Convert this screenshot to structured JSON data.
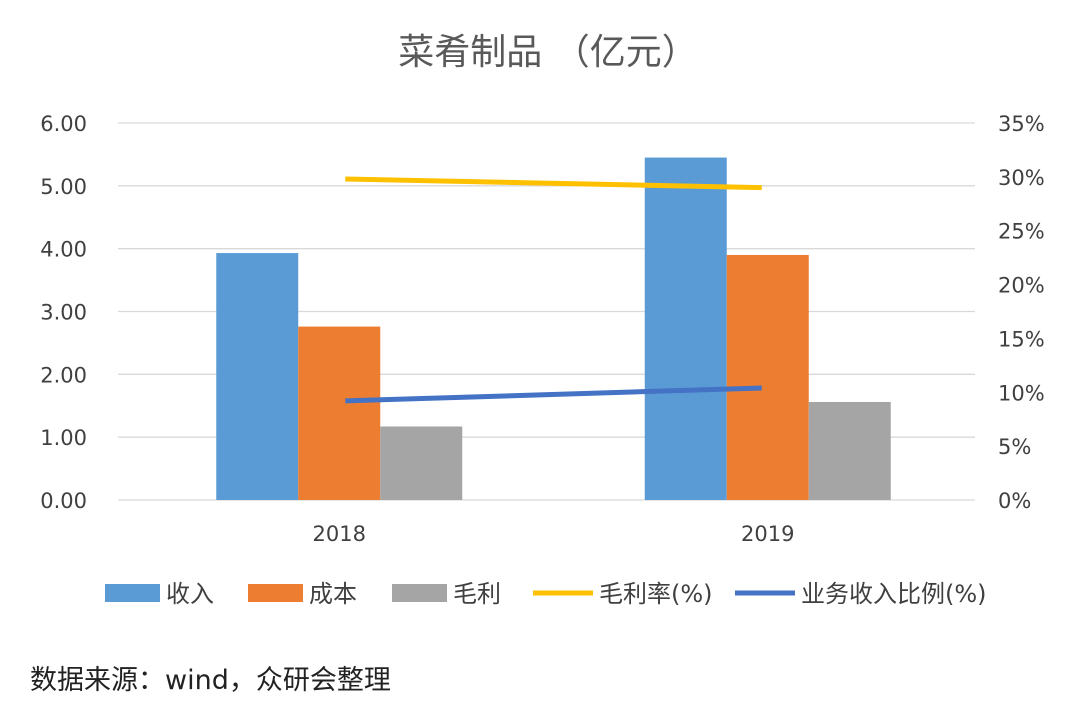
{
  "chart_data": {
    "type": "bar",
    "title": "菜肴制品 （亿元）",
    "categories": [
      "2018",
      "2019"
    ],
    "series": [
      {
        "name": "收入",
        "kind": "bar",
        "axis": "left",
        "color": "#5B9BD5",
        "values": [
          3.93,
          5.45
        ]
      },
      {
        "name": "成本",
        "kind": "bar",
        "axis": "left",
        "color": "#ED7D31",
        "values": [
          2.76,
          3.9
        ]
      },
      {
        "name": "毛利",
        "kind": "bar",
        "axis": "left",
        "color": "#A5A5A5",
        "values": [
          1.17,
          1.56
        ]
      },
      {
        "name": "毛利率(%)",
        "kind": "line",
        "axis": "right",
        "color": "#FFC000",
        "values": [
          29.8,
          29.0
        ]
      },
      {
        "name": "业务收入比例(%)",
        "kind": "line",
        "axis": "right",
        "color": "#4472C4",
        "values": [
          9.2,
          10.4
        ]
      }
    ],
    "y_left": {
      "min": 0,
      "max": 6,
      "ticks": [
        "0.00",
        "1.00",
        "2.00",
        "3.00",
        "4.00",
        "5.00",
        "6.00"
      ]
    },
    "y_right": {
      "min": 0,
      "max": 35,
      "ticks": [
        "0%",
        "5%",
        "10%",
        "15%",
        "20%",
        "25%",
        "30%",
        "35%"
      ]
    },
    "grid": true,
    "legend_position": "bottom"
  },
  "source_note": "数据来源：wind，众研会整理",
  "colors": {
    "grid": "#D9D9D9",
    "axis_text": "#404040",
    "title": "#595959"
  }
}
